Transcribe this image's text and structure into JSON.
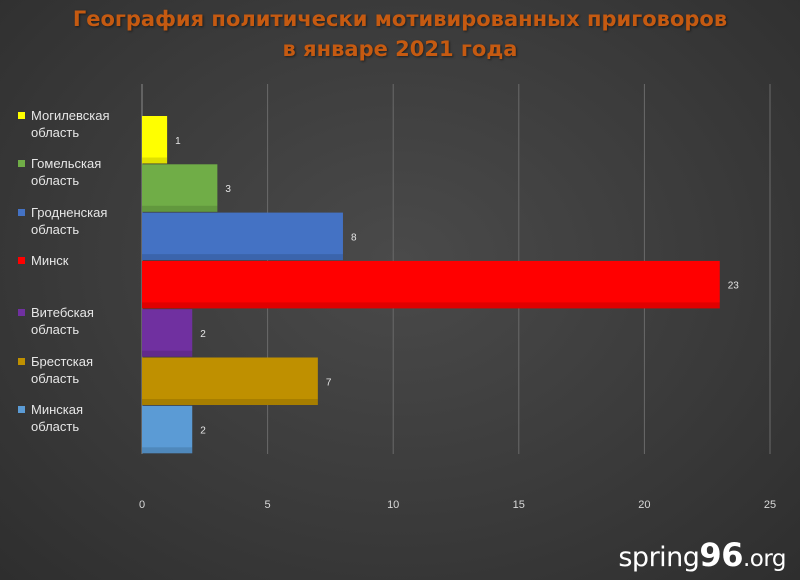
{
  "title": {
    "line1": "География политически мотивированных приговоров",
    "line2": "в январе 2021 года"
  },
  "logo": {
    "part1": "spring",
    "part2": "96",
    "part3": ".org"
  },
  "chart_data": {
    "type": "bar",
    "orientation": "horizontal",
    "title": "География политически мотивированных приговоров в январе 2021 года",
    "categories": [
      "Могилевская область",
      "Гомельская область",
      "Гродненская область",
      "Минск",
      "Витебская область",
      "Брестская область",
      "Минская область"
    ],
    "values": [
      1,
      3,
      8,
      23,
      2,
      7,
      2
    ],
    "colors": [
      "#ffff00",
      "#70ad47",
      "#4472c4",
      "#ff0000",
      "#7030a0",
      "#bf9000",
      "#5b9bd5"
    ],
    "xlim": [
      0,
      25
    ],
    "xticks": [
      0,
      5,
      10,
      15,
      20,
      25
    ],
    "grid": true,
    "data_labels": true,
    "legend": "left"
  }
}
